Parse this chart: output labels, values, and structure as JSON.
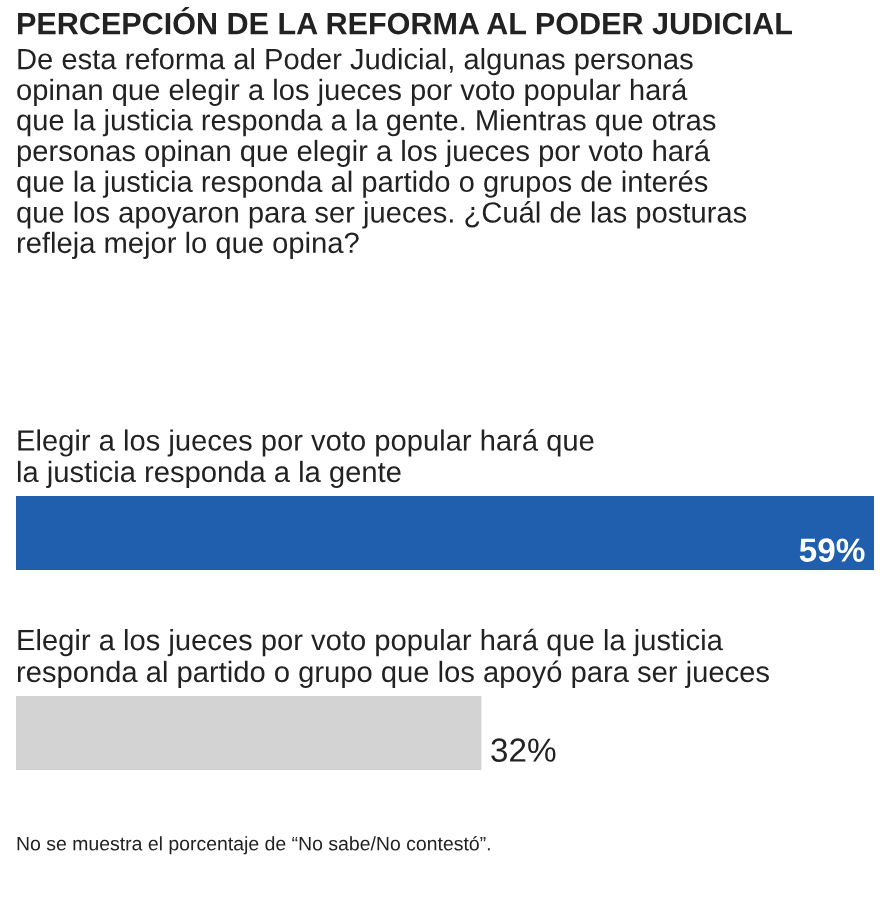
{
  "chart_data": {
    "type": "bar",
    "orientation": "horizontal",
    "title": "PERCEPCIÓN DE LA REFORMA AL PODER JUDICIAL",
    "subtitle": "De esta reforma al Poder Judicial, algunas personas\nopinan que elegir a los jueces por voto popular hará\nque la justicia responda a la gente. Mientras que otras\npersonas opinan que elegir a los jueces por voto hará\nque la justicia responda al partido o grupos de interés\nque los apoyaron para ser jueces. ¿Cuál de las posturas\nrefleja mejor lo que opina?",
    "categories": [
      "Elegir a los jueces por voto popular hará que\nla justicia responda a la gente",
      "Elegir a los jueces por voto popular hará que la justicia\nresponda al partido o grupo que los apoyó para ser jueces"
    ],
    "values": [
      59,
      32
    ],
    "colors": [
      "#1f5fae",
      "#d3d3d3"
    ],
    "value_labels": [
      "59%",
      "32%"
    ],
    "annotations": [
      "No se muestra el porcentaje de “No sabe/No contestó”."
    ]
  }
}
